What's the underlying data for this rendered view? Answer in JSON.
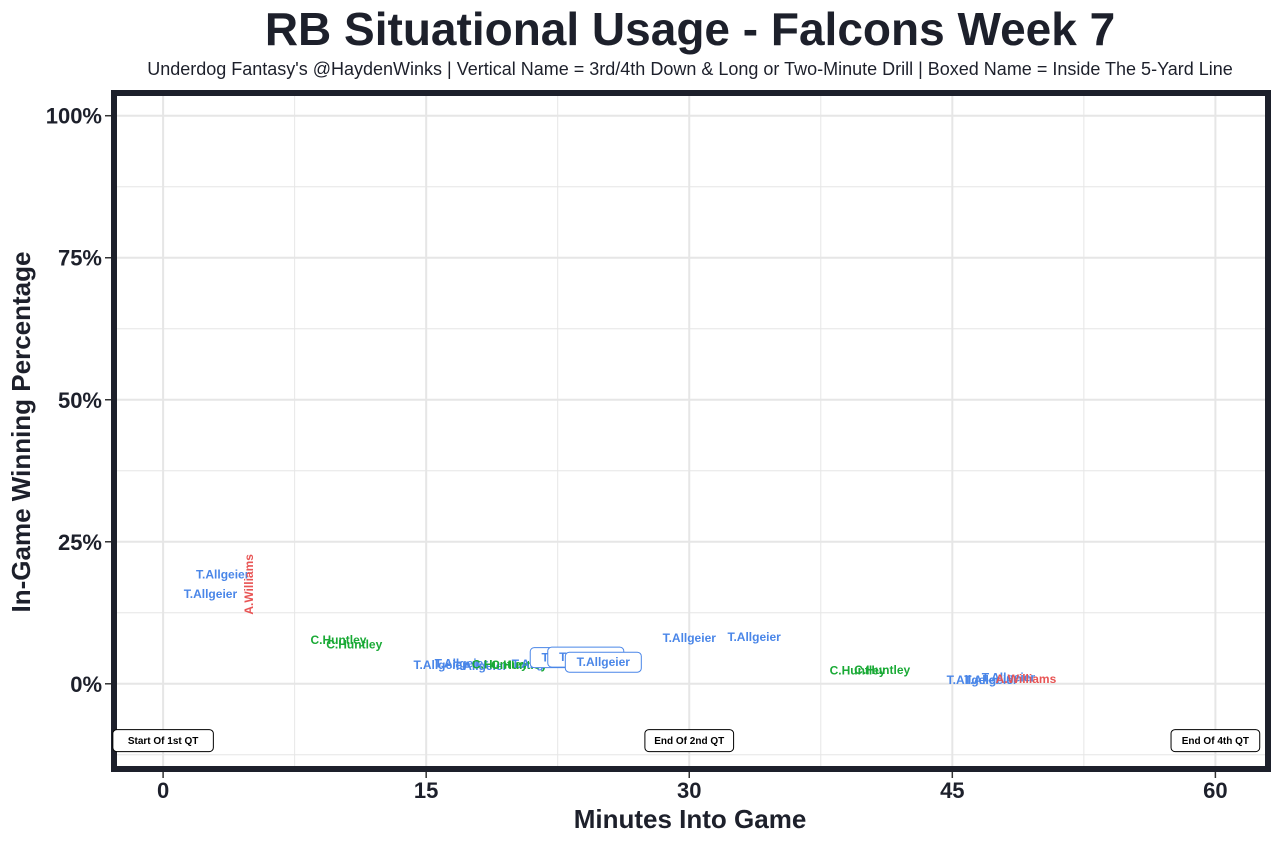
{
  "title": "RB Situational Usage - Falcons Week 7",
  "subtitle": "Underdog Fantasy's @HaydenWinks | Vertical Name = 3rd/4th Down & Long or Two-Minute Drill | Boxed Name = Inside The 5-Yard Line",
  "colors": {
    "T.Allgeier": "#4a86e8",
    "C.Huntley": "#1aaa36",
    "A.Williams": "#e85454",
    "frame": "#1d202b",
    "grid": "#e6e6e6"
  },
  "chart_data": {
    "type": "scatter",
    "title": "RB Situational Usage - Falcons Week 7",
    "xlabel": "Minutes Into Game",
    "ylabel": "In-Game Winning Percentage",
    "xlim": [
      -2.8,
      63
    ],
    "ylim": [
      -15,
      104
    ],
    "x_ticks": [
      0,
      15,
      30,
      45,
      60
    ],
    "x_tick_labels": [
      "0",
      "15",
      "30",
      "45",
      "60"
    ],
    "y_ticks": [
      0,
      25,
      50,
      75,
      100
    ],
    "y_tick_labels": [
      "0%",
      "25%",
      "50%",
      "75%",
      "100%"
    ],
    "grid": true,
    "points": [
      {
        "player": "T.Allgeier",
        "x": 3.4,
        "y": 19.2,
        "style": "normal"
      },
      {
        "player": "T.Allgeier",
        "x": 2.7,
        "y": 15.8,
        "style": "normal"
      },
      {
        "player": "A.Williams",
        "x": 4.9,
        "y": 17.5,
        "style": "vertical"
      },
      {
        "player": "C.Huntley",
        "x": 10.0,
        "y": 7.7,
        "style": "normal"
      },
      {
        "player": "C.Huntley",
        "x": 10.9,
        "y": 6.9,
        "style": "normal"
      },
      {
        "player": "T.Allgeier",
        "x": 15.8,
        "y": 3.3,
        "style": "normal"
      },
      {
        "player": "T.Allgeier",
        "x": 17.0,
        "y": 3.6,
        "style": "normal"
      },
      {
        "player": "T.Allgeier",
        "x": 18.1,
        "y": 3.1,
        "style": "normal"
      },
      {
        "player": "C.Huntley",
        "x": 19.2,
        "y": 3.4,
        "style": "normal"
      },
      {
        "player": "C.Huntley",
        "x": 20.3,
        "y": 3.3,
        "style": "normal"
      },
      {
        "player": "T.Allgeier",
        "x": 21.4,
        "y": 3.5,
        "style": "normal"
      },
      {
        "player": "T.Allgeier",
        "x": 23.1,
        "y": 4.6,
        "style": "boxed"
      },
      {
        "player": "T.Allgeier",
        "x": 24.1,
        "y": 4.7,
        "style": "boxed"
      },
      {
        "player": "T.Allgeier",
        "x": 25.1,
        "y": 3.8,
        "style": "boxed"
      },
      {
        "player": "T.Allgeier",
        "x": 30.0,
        "y": 8.1,
        "style": "normal"
      },
      {
        "player": "T.Allgeier",
        "x": 33.7,
        "y": 8.2,
        "style": "normal"
      },
      {
        "player": "C.Huntley",
        "x": 39.6,
        "y": 2.3,
        "style": "normal"
      },
      {
        "player": "C.Huntley",
        "x": 41.0,
        "y": 2.4,
        "style": "normal"
      },
      {
        "player": "T.Allgeier",
        "x": 46.2,
        "y": 0.7,
        "style": "normal"
      },
      {
        "player": "T.Allgeier",
        "x": 47.2,
        "y": 0.7,
        "style": "normal"
      },
      {
        "player": "T.Allgeier",
        "x": 48.2,
        "y": 1.1,
        "style": "normal"
      },
      {
        "player": "A.Williams",
        "x": 49.2,
        "y": 0.8,
        "style": "normal"
      }
    ],
    "annotations": [
      {
        "text": "Start Of 1st QT",
        "x": 0,
        "y": -10
      },
      {
        "text": "End Of 2nd QT",
        "x": 30,
        "y": -10
      },
      {
        "text": "End Of 4th QT",
        "x": 60,
        "y": -10
      }
    ]
  }
}
